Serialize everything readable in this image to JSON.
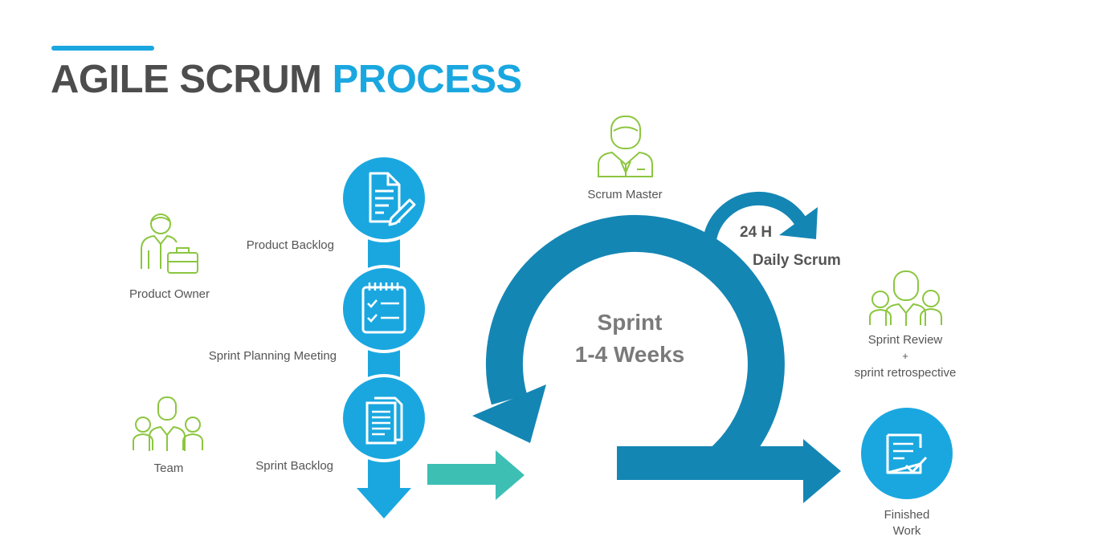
{
  "title": {
    "part1": "AGILE SCRUM",
    "part2": "PROCESS"
  },
  "roles": {
    "product_owner": "Product Owner",
    "team": "Team",
    "scrum_master": "Scrum Master",
    "sprint_review": "Sprint Review",
    "sprint_review_plus": "+",
    "sprint_retrospective": "sprint retrospective"
  },
  "steps": {
    "product_backlog": "Product Backlog",
    "sprint_planning": "Sprint Planning Meeting",
    "sprint_backlog": "Sprint Backlog"
  },
  "sprint": {
    "line1": "Sprint",
    "line2": "1-4 Weeks"
  },
  "daily": {
    "hours": "24 H",
    "label": "Daily Scrum"
  },
  "finished": {
    "line1": "Finished",
    "line2": "Work"
  },
  "colors": {
    "accent": "#1aa7e0",
    "loop": "#1486b4",
    "teal_arrow": "#3dbfb4",
    "icon_green": "#8cc63f",
    "title_dark": "#4d4d4d"
  }
}
